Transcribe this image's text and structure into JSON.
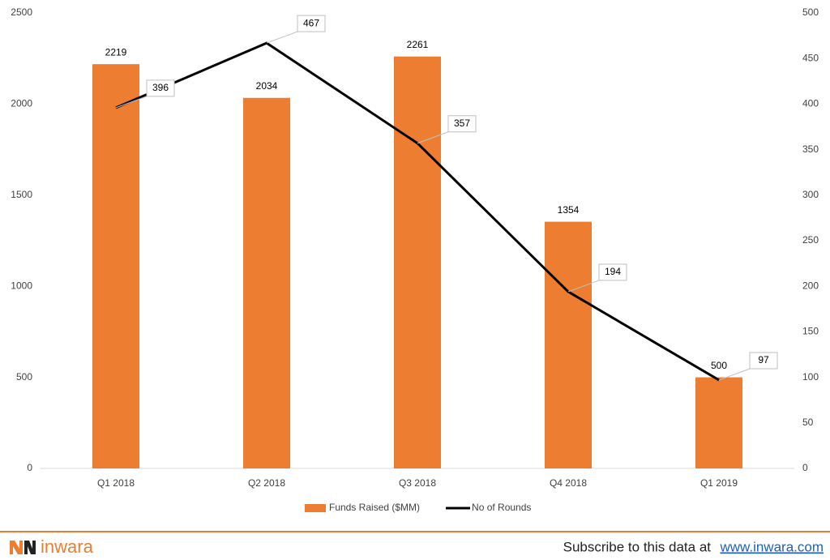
{
  "chart_data": {
    "type": "bar",
    "categories": [
      "Q1 2018",
      "Q2 2018",
      "Q3 2018",
      "Q4 2018",
      "Q1 2019"
    ],
    "series": [
      {
        "name": "Funds Raised ($MM)",
        "type": "bar",
        "color": "#ed7d31",
        "values": [
          2219,
          2034,
          2261,
          1354,
          500
        ]
      },
      {
        "name": "No of Rounds",
        "type": "line",
        "axis": "y2",
        "color": "#000000",
        "values": [
          396,
          467,
          357,
          194,
          97
        ]
      }
    ],
    "ylim": [
      0,
      2500
    ],
    "yticks": [
      0,
      500,
      1000,
      1500,
      2000,
      2500
    ],
    "y2lim": [
      0,
      500
    ],
    "y2ticks": [
      0,
      50,
      100,
      150,
      200,
      250,
      300,
      350,
      400,
      450,
      500
    ],
    "grid": false,
    "legend": "bottom"
  },
  "footer": {
    "brand": "inwara",
    "text": "Subscribe to this data at",
    "link": "www.inwara.com"
  }
}
